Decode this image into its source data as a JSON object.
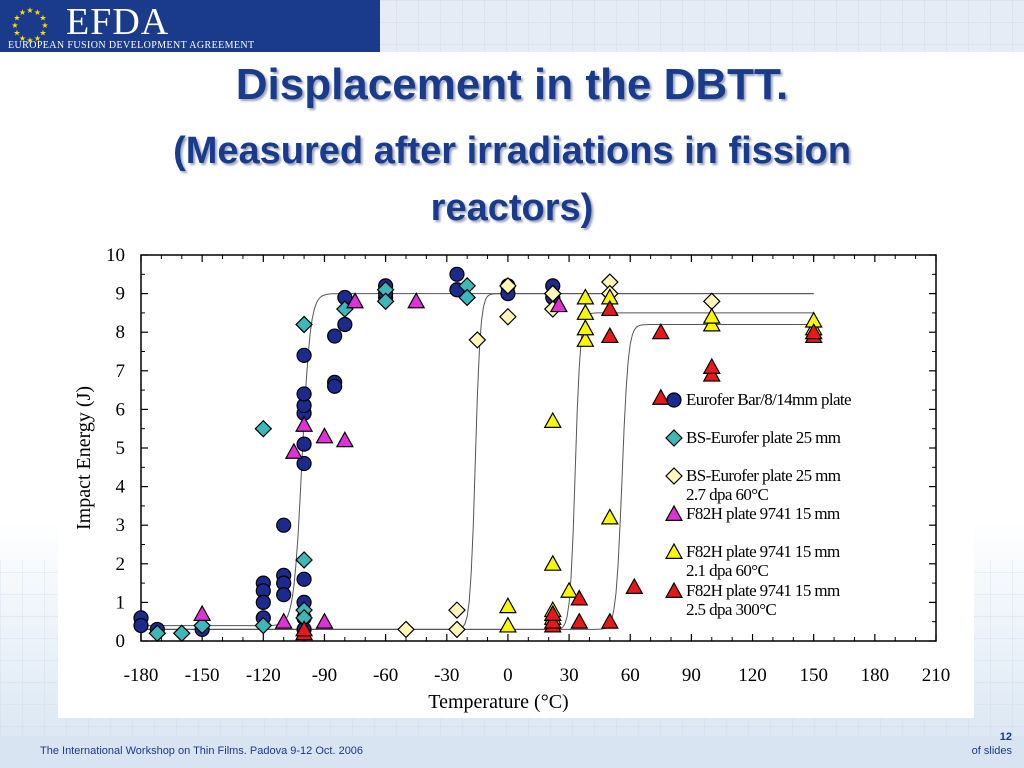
{
  "header": {
    "logo_text": "EFDA",
    "logo_subtitle": "EUROPEAN FUSION DEVELOPMENT AGREEMENT"
  },
  "slide": {
    "title_line1": "Displacement in the DBTT.",
    "title_line2": "(Measured after irradiations in fission",
    "title_line3": "reactors)"
  },
  "footer": {
    "workshop_text": "The International Workshop on Thin Films. Padova 9-12 Oct. 2006",
    "slide_number": "12",
    "slide_of": "of  slides"
  },
  "colors": {
    "brand_blue": "#1a3a8c",
    "navy_marker": "#1c2a8c",
    "teal_marker": "#3cb8b8",
    "cream_marker": "#fff6b8",
    "magenta_marker": "#e030d8",
    "yellow_marker": "#f8f800",
    "red_marker": "#e81818"
  },
  "chart_data": {
    "type": "scatter",
    "xlabel": "Temperature (°C)",
    "ylabel": "Impact Energy (J)",
    "xlim": [
      -180,
      210
    ],
    "ylim": [
      0,
      10
    ],
    "x_ticks": [
      -180,
      -150,
      -120,
      -90,
      -60,
      -30,
      0,
      30,
      60,
      90,
      120,
      150,
      180,
      210
    ],
    "y_ticks": [
      0,
      1,
      2,
      3,
      4,
      5,
      6,
      7,
      8,
      9,
      10
    ],
    "legend_position": "right",
    "series": [
      {
        "name": "Eurofer Bar/8/14mm plate",
        "marker": "circle",
        "color": "#1c2a8c",
        "points": [
          [
            -180,
            0.6
          ],
          [
            -180,
            0.4
          ],
          [
            -172,
            0.3
          ],
          [
            -150,
            0.3
          ],
          [
            -120,
            1.5
          ],
          [
            -120,
            1.3
          ],
          [
            -120,
            1.0
          ],
          [
            -120,
            0.6
          ],
          [
            -110,
            1.7
          ],
          [
            -110,
            1.5
          ],
          [
            -110,
            1.2
          ],
          [
            -110,
            3.0
          ],
          [
            -100,
            1.6
          ],
          [
            -100,
            1.0
          ],
          [
            -100,
            0.6
          ],
          [
            -100,
            4.6
          ],
          [
            -100,
            5.1
          ],
          [
            -100,
            5.9
          ],
          [
            -100,
            6.1
          ],
          [
            -100,
            6.4
          ],
          [
            -100,
            7.4
          ],
          [
            -100,
            0.3
          ],
          [
            -85,
            7.9
          ],
          [
            -85,
            6.7
          ],
          [
            -85,
            6.6
          ],
          [
            -80,
            8.2
          ],
          [
            -80,
            8.9
          ],
          [
            -60,
            8.9
          ],
          [
            -60,
            9.2
          ],
          [
            -60,
            9.0
          ],
          [
            -25,
            9.5
          ],
          [
            -25,
            9.1
          ],
          [
            0,
            9.2
          ],
          [
            0,
            9.0
          ],
          [
            22,
            9.2
          ],
          [
            22,
            8.9
          ]
        ]
      },
      {
        "name": "BS-Eurofer plate 25 mm",
        "marker": "diamond",
        "color": "#3cb8b8",
        "points": [
          [
            -172,
            0.2
          ],
          [
            -160,
            0.2
          ],
          [
            -150,
            0.4
          ],
          [
            -120,
            5.5
          ],
          [
            -120,
            0.4
          ],
          [
            -100,
            0.8
          ],
          [
            -100,
            0.6
          ],
          [
            -100,
            2.1
          ],
          [
            -100,
            8.2
          ],
          [
            -80,
            8.6
          ],
          [
            -60,
            9.1
          ],
          [
            -60,
            8.8
          ],
          [
            -20,
            9.2
          ],
          [
            -20,
            8.9
          ],
          [
            22,
            9.0
          ]
        ]
      },
      {
        "name": "BS-Eurofer plate 25 mm",
        "name_line2": "2.7 dpa 60°C",
        "marker": "diamond",
        "color": "#fff6b8",
        "points": [
          [
            -50,
            0.3
          ],
          [
            -25,
            0.3
          ],
          [
            -25,
            0.8
          ],
          [
            -15,
            7.8
          ],
          [
            0,
            8.4
          ],
          [
            0,
            9.2
          ],
          [
            22,
            8.6
          ],
          [
            22,
            9.0
          ],
          [
            50,
            9.3
          ],
          [
            50,
            9.0
          ],
          [
            100,
            8.8
          ]
        ]
      },
      {
        "name": "F82H plate 9741 15 mm",
        "marker": "triangle",
        "color": "#e030d8",
        "points": [
          [
            -150,
            0.7
          ],
          [
            -110,
            0.5
          ],
          [
            -105,
            4.9
          ],
          [
            -100,
            5.6
          ],
          [
            -90,
            0.5
          ],
          [
            -90,
            5.3
          ],
          [
            -80,
            5.2
          ],
          [
            -75,
            8.8
          ],
          [
            -45,
            8.8
          ],
          [
            25,
            8.7
          ]
        ]
      },
      {
        "name": "F82H plate 9741 15 mm",
        "name_line2": "2.1 dpa 60°C",
        "marker": "triangle",
        "color": "#f8f800",
        "points": [
          [
            0,
            0.9
          ],
          [
            0,
            0.4
          ],
          [
            22,
            0.6
          ],
          [
            22,
            0.8
          ],
          [
            22,
            2.0
          ],
          [
            22,
            5.7
          ],
          [
            30,
            1.3
          ],
          [
            38,
            7.8
          ],
          [
            38,
            8.1
          ],
          [
            38,
            8.5
          ],
          [
            38,
            8.9
          ],
          [
            50,
            3.2
          ],
          [
            50,
            8.9
          ],
          [
            100,
            8.2
          ],
          [
            100,
            8.4
          ],
          [
            150,
            8.1
          ],
          [
            150,
            8.3
          ]
        ]
      },
      {
        "name": "F82H plate 9741 15 mm",
        "name_line2": "2.5 dpa 300°C",
        "marker": "triangle",
        "color": "#e81818",
        "points": [
          [
            -100,
            0.2
          ],
          [
            -100,
            0.3
          ],
          [
            22,
            0.4
          ],
          [
            22,
            0.5
          ],
          [
            22,
            0.7
          ],
          [
            35,
            1.1
          ],
          [
            35,
            0.5
          ],
          [
            50,
            0.5
          ],
          [
            50,
            7.9
          ],
          [
            50,
            8.6
          ],
          [
            62,
            1.4
          ],
          [
            75,
            6.3
          ],
          [
            75,
            8.0
          ],
          [
            100,
            6.9
          ],
          [
            100,
            7.1
          ],
          [
            150,
            7.9
          ],
          [
            150,
            8.0
          ]
        ]
      }
    ],
    "fit_curves": [
      {
        "lower": 0.4,
        "upper": 9.0,
        "t0": -101,
        "width": 4.0
      },
      {
        "lower": 0.3,
        "upper": 9.0,
        "t0": -16,
        "width": 2.5
      },
      {
        "lower": 0.3,
        "upper": 8.5,
        "t0": 33,
        "width": 2.5
      },
      {
        "lower": 0.3,
        "upper": 8.2,
        "t0": 56,
        "width": 3.0
      }
    ]
  }
}
